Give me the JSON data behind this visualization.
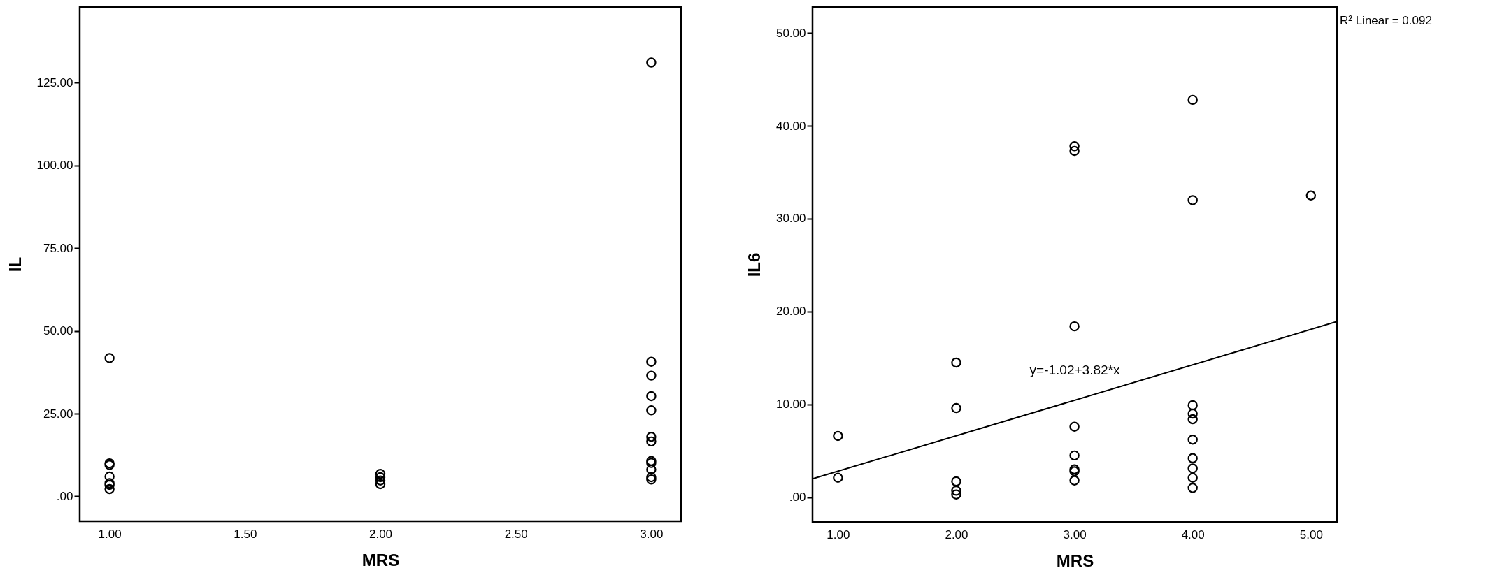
{
  "chart_data": [
    {
      "type": "scatter",
      "xlabel": "MRS",
      "ylabel": "IL",
      "xlim": [
        0.89,
        3.11
      ],
      "ylim": [
        -7.5,
        147.9
      ],
      "xticks": [
        {
          "value": 1,
          "label": "1.00"
        },
        {
          "value": 1.5,
          "label": "1.50"
        },
        {
          "value": 2,
          "label": "2.00"
        },
        {
          "value": 2.5,
          "label": "2.50"
        },
        {
          "value": 3,
          "label": "3.00"
        }
      ],
      "yticks": [
        {
          "value": 0,
          "label": ".00"
        },
        {
          "value": 25,
          "label": "25.00"
        },
        {
          "value": 50,
          "label": "50.00"
        },
        {
          "value": 75,
          "label": "75.00"
        },
        {
          "value": 100,
          "label": "100.00"
        },
        {
          "value": 125,
          "label": "125.00"
        }
      ],
      "series": [
        {
          "color": "#000000",
          "x": [
            1,
            1,
            1,
            1,
            1,
            1,
            1,
            2,
            2,
            2,
            2,
            3,
            3,
            3,
            3,
            3,
            3,
            3,
            3,
            3,
            3,
            3,
            3
          ],
          "values": [
            41.8,
            10,
            9.5,
            6,
            4,
            3.5,
            2.2,
            6.8,
            5.8,
            4.8,
            3.7,
            131.1,
            40.7,
            36.5,
            30.3,
            26,
            18,
            16.6,
            10.7,
            10.1,
            8.1,
            5.8,
            5.1
          ]
        }
      ],
      "marker": "circle",
      "grid": false
    },
    {
      "type": "scatter",
      "xlabel": "MRS",
      "ylabel": "IL6",
      "xlim": [
        0.785,
        5.22
      ],
      "ylim": [
        -2.66,
        52.8
      ],
      "xticks": [
        {
          "value": 1,
          "label": "1.00"
        },
        {
          "value": 2,
          "label": "2.00"
        },
        {
          "value": 3,
          "label": "3.00"
        },
        {
          "value": 4,
          "label": "4.00"
        },
        {
          "value": 5,
          "label": "5.00"
        }
      ],
      "yticks": [
        {
          "value": 0,
          "label": ".00"
        },
        {
          "value": 10,
          "label": "10.00"
        },
        {
          "value": 20,
          "label": "20.00"
        },
        {
          "value": 30,
          "label": "30.00"
        },
        {
          "value": 40,
          "label": "40.00"
        },
        {
          "value": 50,
          "label": "50.00"
        }
      ],
      "series": [
        {
          "color": "#000000",
          "x": [
            1,
            1,
            2,
            2,
            2,
            2,
            2,
            3,
            3,
            3,
            3,
            3,
            3,
            3,
            3,
            4,
            4,
            4,
            4,
            4,
            4,
            4,
            4,
            4,
            4,
            5
          ],
          "values": [
            6.6,
            2.1,
            14.5,
            9.6,
            1.7,
            0.7,
            0.3,
            37.8,
            37.3,
            18.4,
            7.6,
            4.5,
            3,
            2.8,
            1.8,
            42.8,
            32,
            9.9,
            9,
            8.4,
            6.2,
            4.2,
            3.1,
            2.1,
            1,
            32.5
          ]
        },
        {
          "type": "line",
          "color": "#000000",
          "marker": "none",
          "x": [
            0.785,
            5.22
          ],
          "values": [
            1.98,
            18.92
          ]
        }
      ],
      "marker": "circle",
      "grid": false,
      "annotations": [
        "y=-1.02+3.82*x",
        "R² Linear = 0.092"
      ]
    }
  ]
}
